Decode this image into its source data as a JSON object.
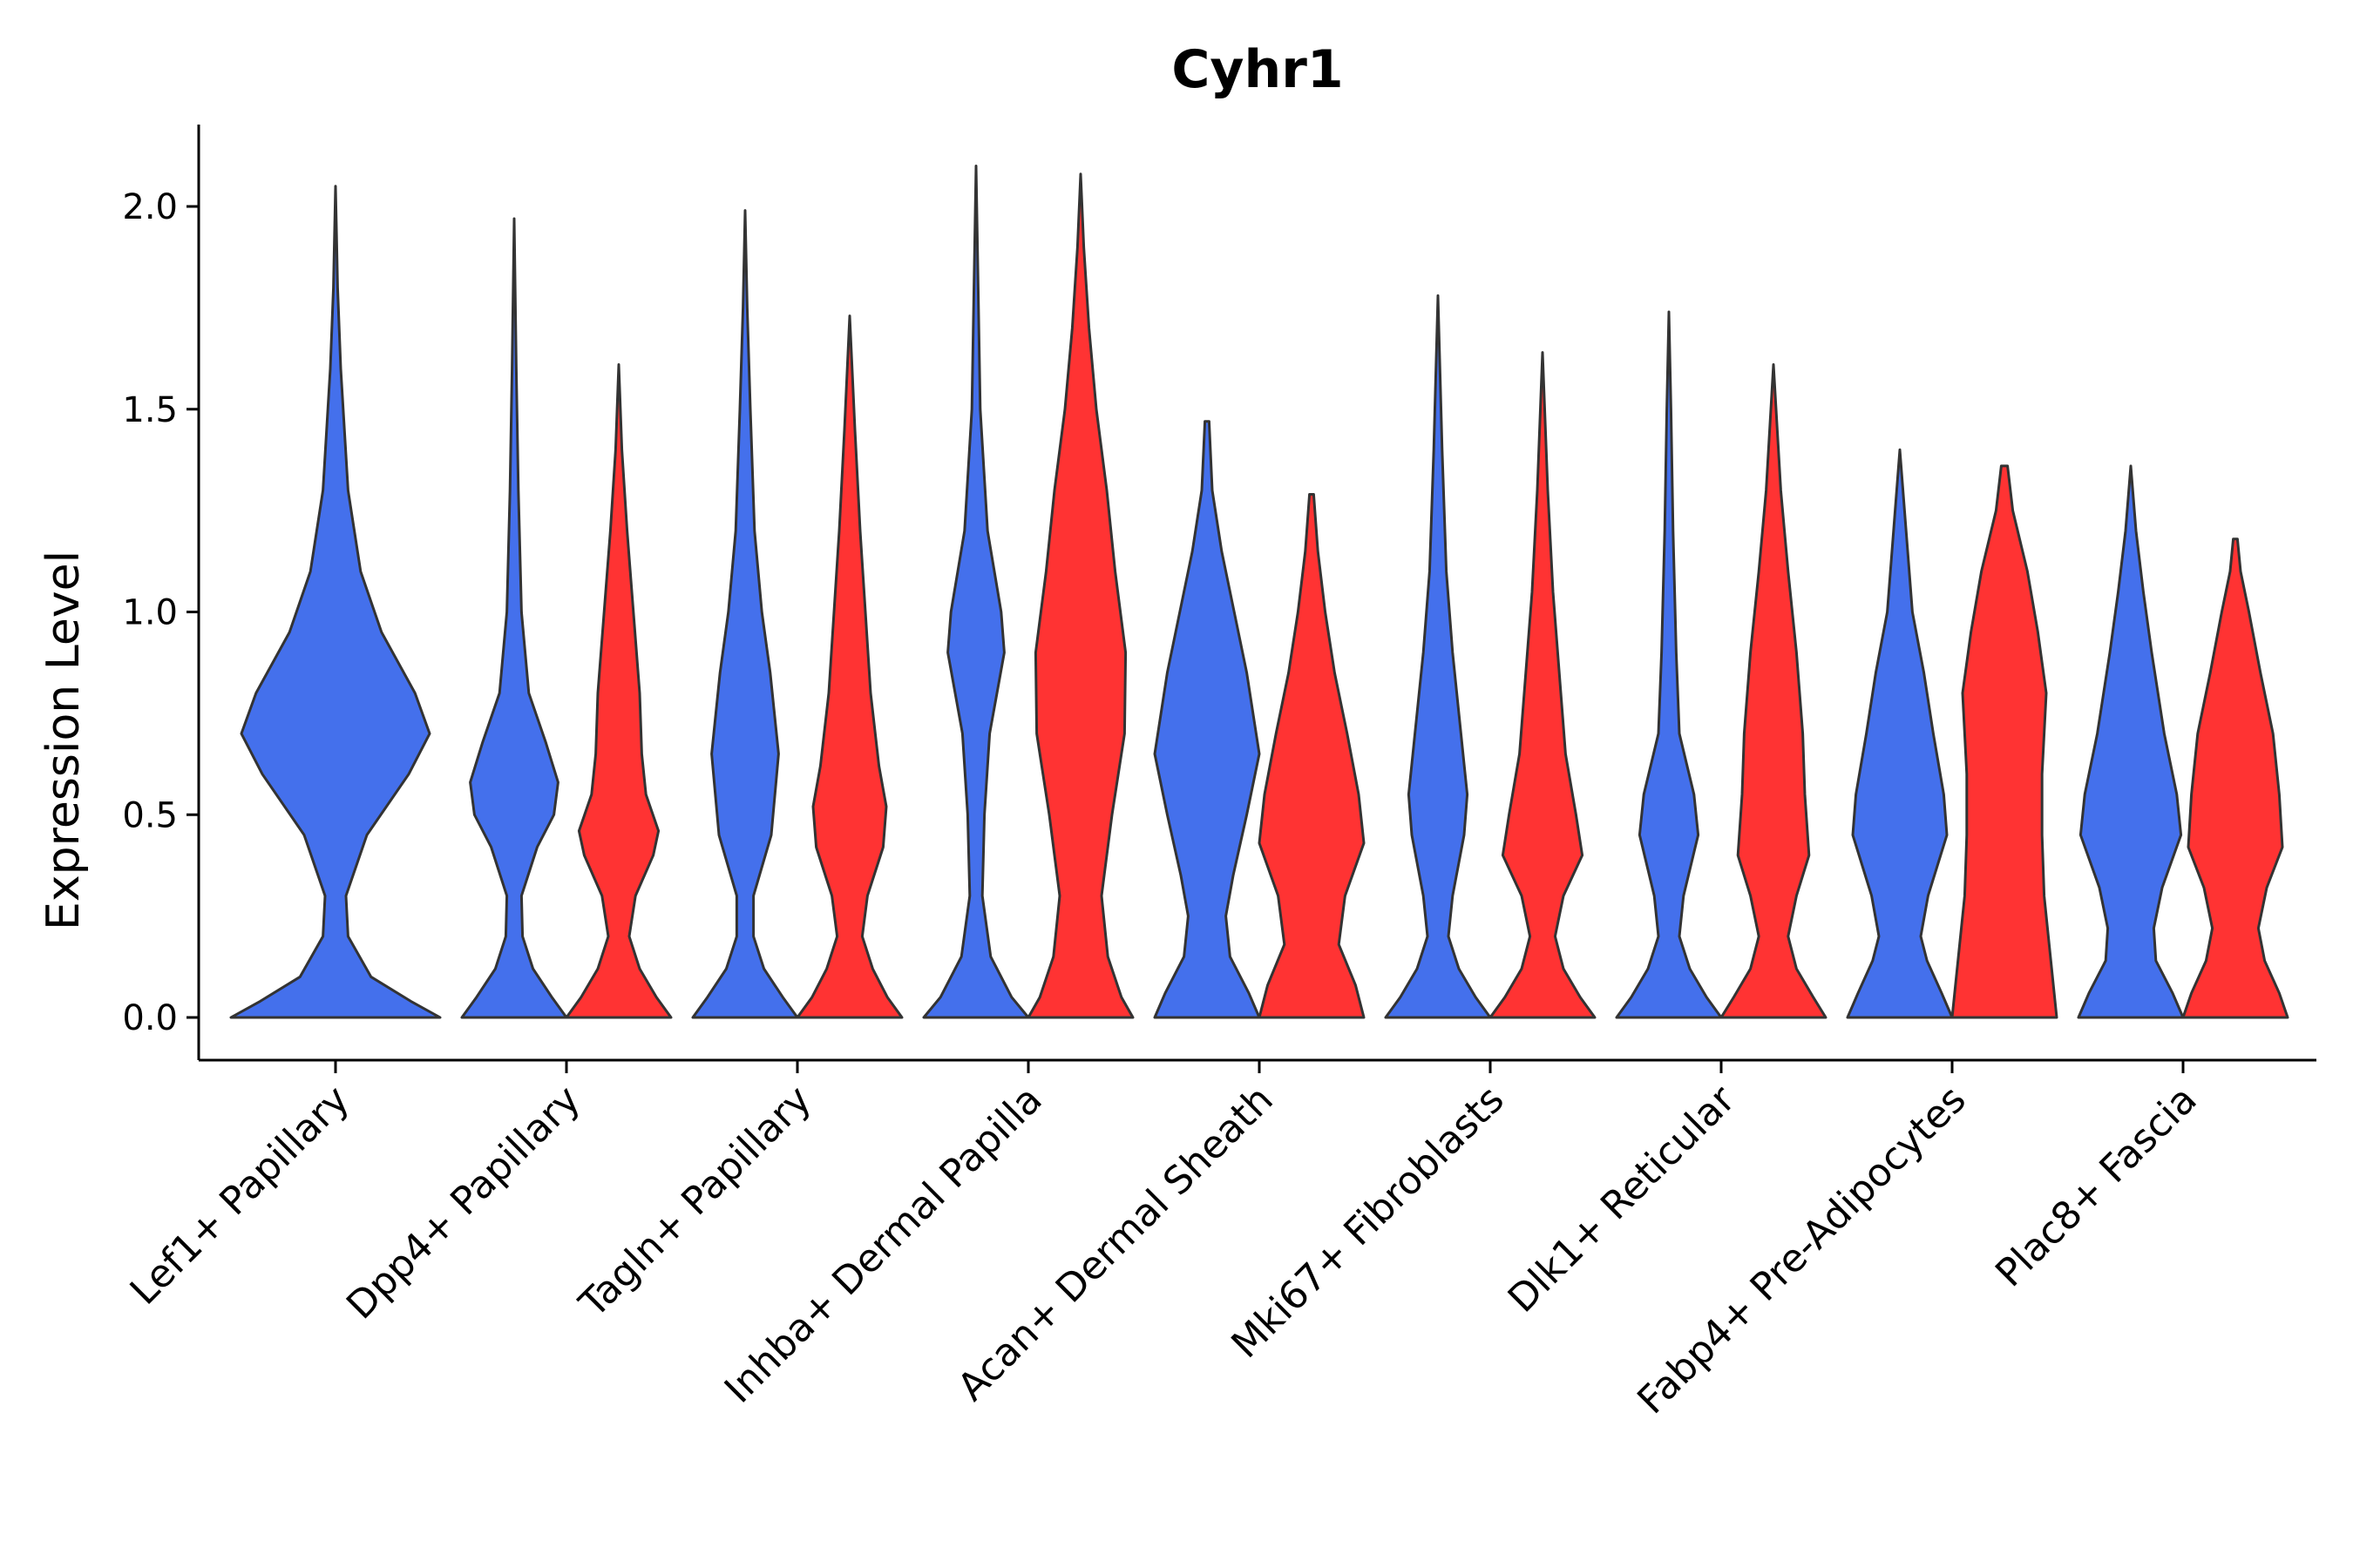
{
  "chart_data": {
    "type": "violin",
    "title": "Cyhr1",
    "xlabel": "",
    "ylabel": "Expression Level",
    "ylim": [
      -0.11,
      2.22
    ],
    "yticks": [
      "0.0",
      "0.5",
      "1.0",
      "1.5",
      "2.0"
    ],
    "ytick_values": [
      0,
      0.5,
      1.0,
      1.5,
      2.0
    ],
    "categories": [
      "Lef1+ Papillary",
      "Dpp4+ Papillary",
      "Tagln+ Papillary",
      "Inhba+ Dermal Papilla",
      "Acan+ Dermal Sheath",
      "Mki67+ Fibroblasts",
      "Dlk1+ Reticular",
      "Fabp4+ Pre-Adipocytes",
      "Plac8+ Fascia"
    ],
    "split_colors": [
      "#4470EC",
      "#FF3333"
    ],
    "series": [
      {
        "category": "Lef1+ Papillary",
        "group": 0,
        "max": 2.05,
        "shape": [
          [
            0,
            0.5
          ],
          [
            0.04,
            0.36
          ],
          [
            0.1,
            0.17
          ],
          [
            0.2,
            0.06
          ],
          [
            0.3,
            0.05
          ],
          [
            0.45,
            0.15
          ],
          [
            0.6,
            0.35
          ],
          [
            0.7,
            0.45
          ],
          [
            0.8,
            0.38
          ],
          [
            0.95,
            0.22
          ],
          [
            1.1,
            0.12
          ],
          [
            1.3,
            0.06
          ],
          [
            1.6,
            0.025
          ],
          [
            1.8,
            0.01
          ],
          [
            2.05,
            0
          ]
        ]
      },
      {
        "category": "Dpp4+ Papillary",
        "group": 0,
        "max": 1.97,
        "shape": [
          [
            0,
            0.5
          ],
          [
            0.05,
            0.36
          ],
          [
            0.12,
            0.18
          ],
          [
            0.2,
            0.08
          ],
          [
            0.3,
            0.07
          ],
          [
            0.42,
            0.22
          ],
          [
            0.5,
            0.38
          ],
          [
            0.58,
            0.42
          ],
          [
            0.68,
            0.3
          ],
          [
            0.8,
            0.14
          ],
          [
            1.0,
            0.07
          ],
          [
            1.3,
            0.04
          ],
          [
            1.6,
            0.02
          ],
          [
            1.97,
            0
          ]
        ]
      },
      {
        "category": "Dpp4+ Papillary",
        "group": 1,
        "max": 1.61,
        "shape": [
          [
            0,
            0.5
          ],
          [
            0.05,
            0.36
          ],
          [
            0.12,
            0.2
          ],
          [
            0.2,
            0.1
          ],
          [
            0.3,
            0.16
          ],
          [
            0.4,
            0.33
          ],
          [
            0.46,
            0.38
          ],
          [
            0.55,
            0.26
          ],
          [
            0.65,
            0.22
          ],
          [
            0.8,
            0.2
          ],
          [
            1.0,
            0.14
          ],
          [
            1.2,
            0.08
          ],
          [
            1.4,
            0.03
          ],
          [
            1.61,
            0
          ]
        ]
      },
      {
        "category": "Tagln+ Papillary",
        "group": 0,
        "max": 1.99,
        "shape": [
          [
            0,
            0.5
          ],
          [
            0.05,
            0.36
          ],
          [
            0.12,
            0.18
          ],
          [
            0.2,
            0.08
          ],
          [
            0.3,
            0.08
          ],
          [
            0.45,
            0.25
          ],
          [
            0.65,
            0.32
          ],
          [
            0.85,
            0.24
          ],
          [
            1.0,
            0.16
          ],
          [
            1.2,
            0.09
          ],
          [
            1.5,
            0.05
          ],
          [
            1.75,
            0.02
          ],
          [
            1.99,
            0
          ]
        ]
      },
      {
        "category": "Tagln+ Papillary",
        "group": 1,
        "max": 1.73,
        "shape": [
          [
            0,
            0.5
          ],
          [
            0.05,
            0.36
          ],
          [
            0.12,
            0.22
          ],
          [
            0.2,
            0.12
          ],
          [
            0.3,
            0.17
          ],
          [
            0.42,
            0.32
          ],
          [
            0.52,
            0.35
          ],
          [
            0.62,
            0.28
          ],
          [
            0.8,
            0.2
          ],
          [
            1.0,
            0.15
          ],
          [
            1.2,
            0.1
          ],
          [
            1.45,
            0.05
          ],
          [
            1.73,
            0
          ]
        ]
      },
      {
        "category": "Inhba+ Dermal Papilla",
        "group": 0,
        "max": 2.1,
        "shape": [
          [
            0,
            0.5
          ],
          [
            0.05,
            0.34
          ],
          [
            0.15,
            0.14
          ],
          [
            0.3,
            0.06
          ],
          [
            0.5,
            0.08
          ],
          [
            0.7,
            0.13
          ],
          [
            0.9,
            0.27
          ],
          [
            1.0,
            0.24
          ],
          [
            1.2,
            0.11
          ],
          [
            1.5,
            0.04
          ],
          [
            1.8,
            0.02
          ],
          [
            2.1,
            0
          ]
        ]
      },
      {
        "category": "Inhba+ Dermal Papilla",
        "group": 1,
        "max": 2.08,
        "shape": [
          [
            0,
            0.5
          ],
          [
            0.05,
            0.39
          ],
          [
            0.15,
            0.26
          ],
          [
            0.3,
            0.2
          ],
          [
            0.5,
            0.3
          ],
          [
            0.7,
            0.42
          ],
          [
            0.9,
            0.43
          ],
          [
            1.1,
            0.33
          ],
          [
            1.3,
            0.25
          ],
          [
            1.5,
            0.15
          ],
          [
            1.7,
            0.08
          ],
          [
            1.9,
            0.03
          ],
          [
            2.08,
            0
          ]
        ]
      },
      {
        "category": "Acan+ Dermal Sheath",
        "group": 0,
        "max": 1.47,
        "shape": [
          [
            0,
            0.5
          ],
          [
            0.06,
            0.4
          ],
          [
            0.15,
            0.22
          ],
          [
            0.25,
            0.18
          ],
          [
            0.35,
            0.25
          ],
          [
            0.5,
            0.38
          ],
          [
            0.65,
            0.5
          ],
          [
            0.85,
            0.38
          ],
          [
            1.0,
            0.26
          ],
          [
            1.15,
            0.14
          ],
          [
            1.3,
            0.05
          ],
          [
            1.47,
            0.02
          ]
        ]
      },
      {
        "category": "Acan+ Dermal Sheath",
        "group": 1,
        "max": 1.29,
        "shape": [
          [
            0,
            0.5
          ],
          [
            0.08,
            0.42
          ],
          [
            0.18,
            0.26
          ],
          [
            0.3,
            0.32
          ],
          [
            0.43,
            0.5
          ],
          [
            0.55,
            0.45
          ],
          [
            0.7,
            0.34
          ],
          [
            0.85,
            0.22
          ],
          [
            1.0,
            0.13
          ],
          [
            1.15,
            0.06
          ],
          [
            1.29,
            0.02
          ]
        ]
      },
      {
        "category": "Mki67+ Fibroblasts",
        "group": 0,
        "max": 1.78,
        "shape": [
          [
            0,
            0.5
          ],
          [
            0.05,
            0.36
          ],
          [
            0.12,
            0.2
          ],
          [
            0.2,
            0.1
          ],
          [
            0.3,
            0.14
          ],
          [
            0.45,
            0.25
          ],
          [
            0.55,
            0.28
          ],
          [
            0.7,
            0.22
          ],
          [
            0.9,
            0.14
          ],
          [
            1.1,
            0.08
          ],
          [
            1.4,
            0.04
          ],
          [
            1.78,
            0
          ]
        ]
      },
      {
        "category": "Mki67+ Fibroblasts",
        "group": 1,
        "max": 1.64,
        "shape": [
          [
            0,
            0.5
          ],
          [
            0.05,
            0.36
          ],
          [
            0.12,
            0.2
          ],
          [
            0.2,
            0.12
          ],
          [
            0.3,
            0.2
          ],
          [
            0.4,
            0.38
          ],
          [
            0.5,
            0.32
          ],
          [
            0.65,
            0.22
          ],
          [
            0.85,
            0.16
          ],
          [
            1.05,
            0.1
          ],
          [
            1.3,
            0.05
          ],
          [
            1.64,
            0
          ]
        ]
      },
      {
        "category": "Dlk1+ Reticular",
        "group": 0,
        "max": 1.74,
        "shape": [
          [
            0,
            0.5
          ],
          [
            0.05,
            0.36
          ],
          [
            0.12,
            0.2
          ],
          [
            0.2,
            0.1
          ],
          [
            0.3,
            0.14
          ],
          [
            0.45,
            0.28
          ],
          [
            0.55,
            0.24
          ],
          [
            0.7,
            0.1
          ],
          [
            0.9,
            0.07
          ],
          [
            1.2,
            0.04
          ],
          [
            1.5,
            0.02
          ],
          [
            1.74,
            0
          ]
        ]
      },
      {
        "category": "Dlk1+ Reticular",
        "group": 1,
        "max": 1.61,
        "shape": [
          [
            0,
            0.5
          ],
          [
            0.05,
            0.38
          ],
          [
            0.12,
            0.22
          ],
          [
            0.2,
            0.14
          ],
          [
            0.3,
            0.22
          ],
          [
            0.4,
            0.34
          ],
          [
            0.55,
            0.3
          ],
          [
            0.7,
            0.28
          ],
          [
            0.9,
            0.22
          ],
          [
            1.1,
            0.14
          ],
          [
            1.3,
            0.07
          ],
          [
            1.61,
            0
          ]
        ]
      },
      {
        "category": "Fabp4+ Pre-Adipocytes",
        "group": 0,
        "max": 1.4,
        "shape": [
          [
            0,
            0.5
          ],
          [
            0.06,
            0.4
          ],
          [
            0.14,
            0.26
          ],
          [
            0.2,
            0.2
          ],
          [
            0.3,
            0.27
          ],
          [
            0.45,
            0.45
          ],
          [
            0.55,
            0.42
          ],
          [
            0.7,
            0.32
          ],
          [
            0.85,
            0.23
          ],
          [
            1.0,
            0.12
          ],
          [
            1.2,
            0.06
          ],
          [
            1.4,
            0
          ]
        ]
      },
      {
        "category": "Fabp4+ Pre-Adipocytes",
        "group": 1,
        "max": 1.36,
        "shape": [
          [
            0,
            0.5
          ],
          [
            0.15,
            0.44
          ],
          [
            0.3,
            0.38
          ],
          [
            0.45,
            0.36
          ],
          [
            0.6,
            0.36
          ],
          [
            0.8,
            0.4
          ],
          [
            0.95,
            0.32
          ],
          [
            1.1,
            0.22
          ],
          [
            1.25,
            0.08
          ],
          [
            1.36,
            0.03
          ]
        ]
      },
      {
        "category": "Plac8+ Fascia",
        "group": 0,
        "max": 1.36,
        "shape": [
          [
            0,
            0.5
          ],
          [
            0.06,
            0.4
          ],
          [
            0.14,
            0.24
          ],
          [
            0.22,
            0.22
          ],
          [
            0.32,
            0.3
          ],
          [
            0.45,
            0.48
          ],
          [
            0.55,
            0.44
          ],
          [
            0.7,
            0.32
          ],
          [
            0.9,
            0.2
          ],
          [
            1.05,
            0.12
          ],
          [
            1.2,
            0.05
          ],
          [
            1.36,
            0
          ]
        ]
      },
      {
        "category": "Plac8+ Fascia",
        "group": 1,
        "max": 1.18,
        "shape": [
          [
            0,
            0.5
          ],
          [
            0.06,
            0.42
          ],
          [
            0.14,
            0.28
          ],
          [
            0.22,
            0.22
          ],
          [
            0.32,
            0.3
          ],
          [
            0.42,
            0.45
          ],
          [
            0.55,
            0.42
          ],
          [
            0.7,
            0.36
          ],
          [
            0.85,
            0.24
          ],
          [
            1.0,
            0.13
          ],
          [
            1.1,
            0.05
          ],
          [
            1.18,
            0.02
          ]
        ]
      }
    ]
  }
}
